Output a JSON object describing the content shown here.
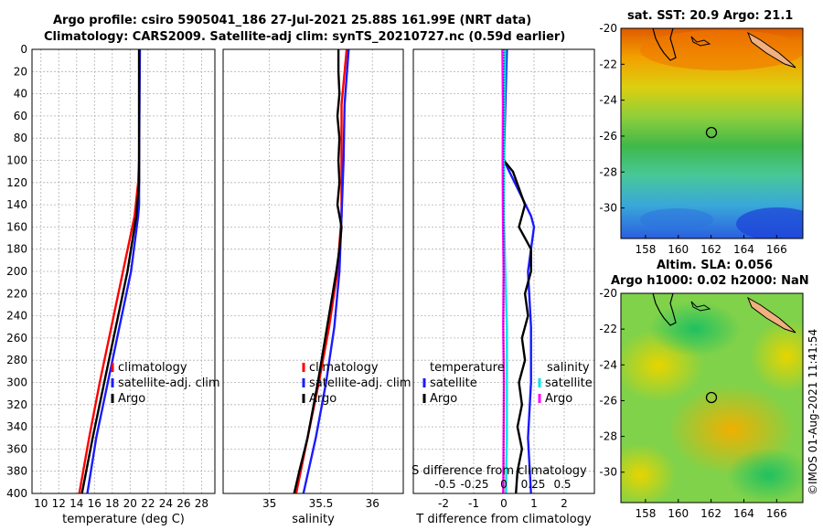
{
  "header": {
    "title_line1": "Argo profile: csiro 5905041_186 27-Jul-2021 25.88S 161.99E (NRT data)",
    "title_line2": "Climatology: CARS2009. Satellite-adj clim: synTS_20210727.nc (0.59d earlier)"
  },
  "footer": {
    "stamp": "©IMOS 01-Aug-2021 11:41:54"
  },
  "colors": {
    "climatology": "#ff0000",
    "satellite": "#1a1aff",
    "argo": "#000000",
    "sal_sat": "#00e5e5",
    "sal_argo": "#ff00ff",
    "grid": "#b0b0b0"
  },
  "chart_data": [
    {
      "type": "line",
      "id": "temperature",
      "xlabel": "temperature (deg C)",
      "xlim": [
        9,
        29.5
      ],
      "xticks": [
        "10",
        "12",
        "14",
        "16",
        "18",
        "20",
        "22",
        "24",
        "26",
        "28"
      ],
      "ylim": [
        0,
        400
      ],
      "yticks": [
        "0",
        "20",
        "40",
        "60",
        "80",
        "100",
        "120",
        "140",
        "160",
        "180",
        "200",
        "220",
        "240",
        "260",
        "280",
        "300",
        "320",
        "340",
        "360",
        "380",
        "400"
      ],
      "legend": [
        "climatology",
        "satellite-adj. clim",
        "Argo"
      ],
      "series": [
        {
          "name": "climatology",
          "color": "#ff0000",
          "depth": [
            0,
            100,
            120,
            150,
            200,
            250,
            300,
            350,
            400
          ],
          "values": [
            21,
            21,
            20.9,
            20.5,
            19.2,
            17.9,
            16.6,
            15.4,
            14.3
          ]
        },
        {
          "name": "satellite-adj. clim",
          "color": "#1a1aff",
          "depth": [
            0,
            100,
            140,
            150,
            200,
            250,
            300,
            350,
            400
          ],
          "values": [
            21.1,
            21,
            21,
            20.9,
            20.1,
            18.8,
            17.5,
            16.2,
            15.2
          ]
        },
        {
          "name": "Argo",
          "color": "#000000",
          "depth": [
            0,
            100,
            120,
            150,
            170,
            200,
            250,
            300,
            350,
            400
          ],
          "values": [
            21,
            21,
            21,
            20.7,
            20.3,
            19.7,
            18.4,
            17.1,
            15.8,
            14.6
          ]
        }
      ]
    },
    {
      "type": "line",
      "id": "salinity",
      "xlabel": "salinity",
      "xlim": [
        34.55,
        36.3
      ],
      "xticks": [
        "35",
        "35.5",
        "36"
      ],
      "ylim": [
        0,
        400
      ],
      "legend": [
        "climatology",
        "satellite-adj. clim",
        "Argo"
      ],
      "series": [
        {
          "name": "climatology",
          "color": "#ff0000",
          "depth": [
            0,
            50,
            100,
            150,
            200,
            250,
            300,
            350,
            400
          ],
          "values": [
            35.75,
            35.7,
            35.7,
            35.7,
            35.66,
            35.58,
            35.48,
            35.37,
            35.26
          ]
        },
        {
          "name": "satellite-adj. clim",
          "color": "#1a1aff",
          "depth": [
            0,
            50,
            100,
            150,
            200,
            250,
            300,
            350,
            400
          ],
          "values": [
            35.77,
            35.73,
            35.72,
            35.7,
            35.68,
            35.63,
            35.55,
            35.45,
            35.33
          ]
        },
        {
          "name": "Argo",
          "color": "#000000",
          "depth": [
            0,
            20,
            40,
            60,
            80,
            100,
            120,
            140,
            160,
            180,
            200,
            250,
            300,
            350,
            380,
            400
          ],
          "values": [
            35.67,
            35.67,
            35.68,
            35.66,
            35.68,
            35.67,
            35.68,
            35.66,
            35.7,
            35.68,
            35.65,
            35.56,
            35.47,
            35.37,
            35.29,
            35.24
          ]
        }
      ]
    },
    {
      "type": "line",
      "id": "difference",
      "xlabel": "T difference from climatology",
      "xlim": [
        -3,
        3
      ],
      "xticks": [
        "-2",
        "-1",
        "0",
        "1",
        "2"
      ],
      "secondary_xlabel": "S difference from climatology",
      "secondary_xticks": [
        "-0.5",
        "-0.25",
        "0",
        "0.25",
        "0.5"
      ],
      "ylim": [
        0,
        400
      ],
      "legend_temperature": {
        "title": "temperature",
        "items": [
          "satellite",
          "Argo"
        ]
      },
      "legend_salinity": {
        "title": "salinity",
        "items": [
          "satellite",
          "Argo"
        ]
      },
      "series": [
        {
          "name": "temperature satellite",
          "color": "#1a1aff",
          "depth": [
            0,
            100,
            150,
            160,
            200,
            250,
            300,
            350,
            400
          ],
          "values": [
            0.1,
            0.0,
            0.9,
            1.0,
            0.8,
            0.9,
            0.9,
            0.8,
            0.9
          ]
        },
        {
          "name": "temperature Argo",
          "color": "#000000",
          "depth": [
            0,
            100,
            110,
            140,
            160,
            180,
            200,
            220,
            240,
            260,
            280,
            300,
            320,
            340,
            360,
            380,
            400
          ],
          "values": [
            0.05,
            0.0,
            0.3,
            0.7,
            0.5,
            0.9,
            0.9,
            0.7,
            0.8,
            0.6,
            0.7,
            0.5,
            0.6,
            0.45,
            0.6,
            0.45,
            0.4
          ]
        },
        {
          "name": "salinity satellite",
          "color": "#00e5e5",
          "depth": [
            0,
            100,
            150,
            200,
            250,
            300,
            350,
            380,
            400
          ],
          "values": [
            0.05,
            0.0,
            0.0,
            0.05,
            0.1,
            0.1,
            0.1,
            0.08,
            0.07
          ]
        },
        {
          "name": "salinity Argo",
          "color": "#ff00ff",
          "depth": [
            0,
            50,
            100,
            150,
            200,
            250,
            300,
            350,
            400
          ],
          "values": [
            -0.05,
            -0.03,
            -0.04,
            -0.03,
            -0.01,
            -0.02,
            0.0,
            -0.01,
            -0.02
          ]
        }
      ]
    }
  ],
  "maps": [
    {
      "title": "sat. SST: 20.9 Argo: 21.1",
      "xticks": [
        "158",
        "160",
        "162",
        "164",
        "166"
      ],
      "yticks": [
        "-20",
        "-22",
        "-24",
        "-26",
        "-28",
        "-30"
      ],
      "marker": {
        "lon": 161.99,
        "lat": -25.88
      }
    },
    {
      "title_line1": "Altim. SLA: 0.056",
      "title_line2": "Argo h1000: 0.02 h2000: NaN",
      "xticks": [
        "158",
        "160",
        "162",
        "164",
        "166"
      ],
      "yticks": [
        "-20",
        "-22",
        "-24",
        "-26",
        "-28",
        "-30"
      ],
      "marker": {
        "lon": 161.99,
        "lat": -25.88
      }
    }
  ]
}
